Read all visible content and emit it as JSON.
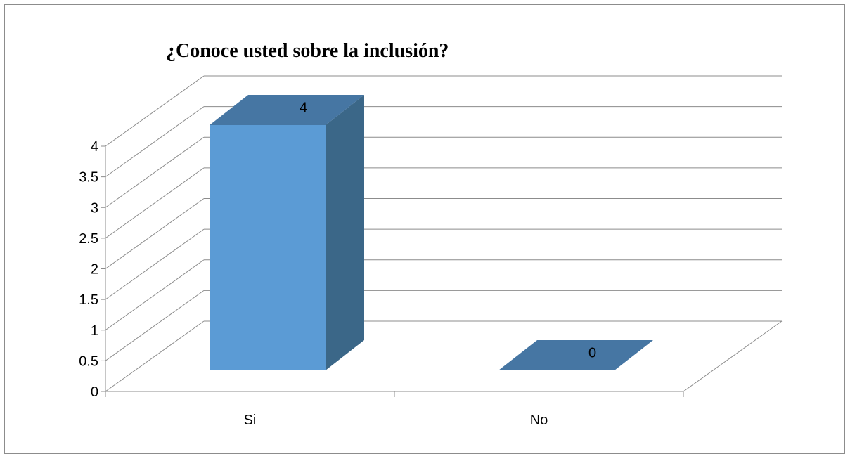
{
  "chart_data": {
    "type": "bar",
    "three_d": true,
    "title": "¿Conoce usted sobre la inclusión?",
    "categories": [
      "Si",
      "No"
    ],
    "values": [
      4,
      0
    ],
    "data_labels": [
      "4",
      "0"
    ],
    "ylim": [
      0,
      4
    ],
    "y_ticks": [
      "0",
      "0.5",
      "1",
      "1.5",
      "2",
      "2.5",
      "3",
      "3.5",
      "4"
    ],
    "xlabel": "",
    "ylabel": "",
    "grid": true,
    "legend": "none",
    "colors": {
      "bar_front": "#5b9bd5",
      "bar_side": "#3b6788",
      "bar_top": "#4676a3",
      "grid": "#8c8c8c",
      "axis": "#8c8c8c"
    }
  }
}
